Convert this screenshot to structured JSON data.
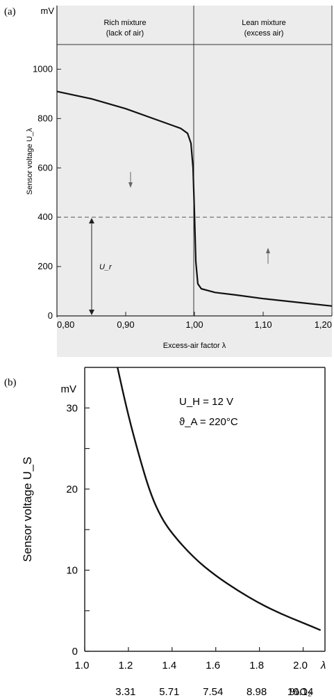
{
  "chart_data": [
    {
      "panel": "(a)",
      "type": "line",
      "unit": "mV",
      "ylabel": "Sensor voltage U_λ",
      "xlabel": "Excess-air factor λ",
      "xlim": [
        0.8,
        1.2
      ],
      "ylim": [
        0,
        1100
      ],
      "x_ticks": [
        "0,80",
        "0,90",
        "1,00",
        "1,10",
        "1,20"
      ],
      "y_ticks": [
        "0",
        "200",
        "400",
        "600",
        "800",
        "1000"
      ],
      "regions": [
        {
          "line1": "Rich mixture",
          "line2": "(lack of air)"
        },
        {
          "line1": "Lean mixture",
          "line2": "(excess air)"
        }
      ],
      "reference_line": {
        "y": 400,
        "label": "U_r"
      },
      "series": [
        {
          "x": [
            0.8,
            0.85,
            0.9,
            0.95,
            0.98,
            0.99,
            0.995,
            0.998,
            1.0,
            1.002,
            1.005,
            1.01,
            1.03,
            1.06,
            1.1,
            1.15,
            1.2
          ],
          "y": [
            910,
            880,
            840,
            790,
            760,
            740,
            700,
            600,
            420,
            220,
            130,
            110,
            95,
            85,
            70,
            55,
            40
          ]
        }
      ]
    },
    {
      "panel": "(b)",
      "type": "line",
      "unit": "mV",
      "ylabel": "Sensor voltage U_S",
      "xlim": [
        1.0,
        2.1
      ],
      "ylim": [
        0,
        35
      ],
      "x_ticks": [
        "1.0",
        "1.2",
        "1.4",
        "1.6",
        "1.8",
        "2.0"
      ],
      "x_end_label": "λ",
      "o2_ticks": [
        "3.31",
        "5.71",
        "7.54",
        "8.98",
        "10.14"
      ],
      "o2_suffix": "%O₂",
      "y_ticks": [
        "0",
        "10",
        "20",
        "30"
      ],
      "annotations": [
        "U_H = 12 V",
        "ϑ_A = 220°C"
      ],
      "series": [
        {
          "x": [
            1.15,
            1.2,
            1.25,
            1.3,
            1.35,
            1.4,
            1.5,
            1.6,
            1.7,
            1.8,
            1.9,
            2.0,
            2.08
          ],
          "y": [
            35,
            29,
            24,
            19.5,
            16.5,
            14.5,
            11.5,
            9.3,
            7.5,
            5.9,
            4.6,
            3.5,
            2.6
          ]
        }
      ]
    }
  ]
}
